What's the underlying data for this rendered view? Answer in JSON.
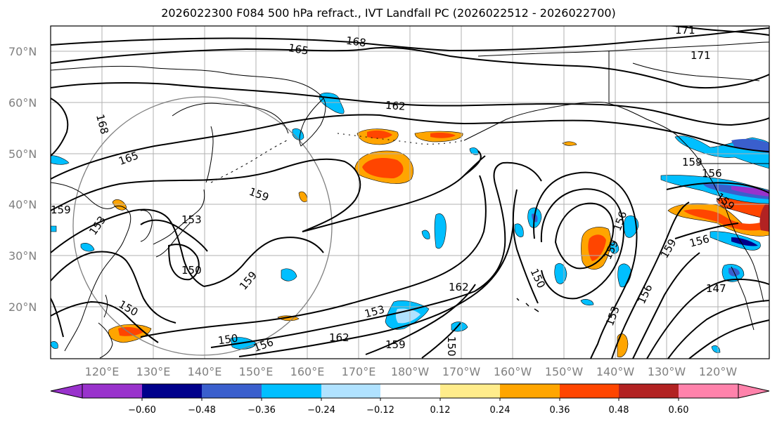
{
  "title": "2026022300 F084 500 hPa refract., IVT Landfall PC (2026022512 - 2026022700)",
  "lat_labels": [
    "70°N",
    "60°N",
    "50°N",
    "40°N",
    "30°N",
    "20°N"
  ],
  "lon_labels": [
    "120°E",
    "130°E",
    "140°E",
    "150°E",
    "160°E",
    "170°E",
    "180°W",
    "170°W",
    "160°W",
    "150°W",
    "140°W",
    "130°W",
    "120°W"
  ],
  "contour_labels": [
    "168",
    "165",
    "171",
    "162",
    "171",
    "168",
    "165",
    "159",
    "153",
    "150",
    "159",
    "153",
    "150",
    "147",
    "156",
    "159",
    "156",
    "159",
    "150",
    "153",
    "162",
    "159",
    "150",
    "162",
    "159",
    "156",
    "153",
    "150",
    "156",
    "159",
    "156",
    "159"
  ],
  "colorbar": {
    "ticks": [
      "−0.60",
      "−0.48",
      "−0.36",
      "−0.24",
      "−0.12",
      "0.12",
      "0.24",
      "0.36",
      "0.48",
      "0.60"
    ],
    "colors": [
      "#9932cc",
      "#00008b",
      "#3a5fcd",
      "#00bfff",
      "#b0e2ff",
      "#ffffff",
      "#ffec8b",
      "#ffa500",
      "#ff4500",
      "#b22222",
      "#ff82ab"
    ]
  },
  "colors": {
    "positive_light": "#ffec8b",
    "positive_mid": "#ffa500",
    "positive_strong": "#ff4500",
    "negative_light": "#b0e2ff",
    "negative_mid": "#00bfff",
    "negative_strong": "#3a5fcd",
    "negative_deep": "#00008b",
    "grid": "#b0b0b0",
    "label_gray": "#808080"
  }
}
